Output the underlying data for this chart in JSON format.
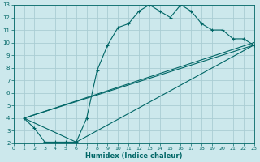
{
  "xlabel": "Humidex (Indice chaleur)",
  "xlim": [
    0,
    23
  ],
  "ylim": [
    2,
    13
  ],
  "xticks": [
    0,
    1,
    2,
    3,
    4,
    5,
    6,
    7,
    8,
    9,
    10,
    11,
    12,
    13,
    14,
    15,
    16,
    17,
    18,
    19,
    20,
    21,
    22,
    23
  ],
  "yticks": [
    2,
    3,
    4,
    5,
    6,
    7,
    8,
    9,
    10,
    11,
    12,
    13
  ],
  "bg_color": "#cce8ec",
  "line_color": "#006666",
  "grid_color": "#aacdd4",
  "line1_x": [
    1,
    2,
    3,
    4,
    5,
    6,
    7,
    8,
    9,
    10,
    11,
    12,
    13,
    14,
    15,
    16,
    17,
    18,
    19,
    20,
    21,
    22,
    23
  ],
  "line1_y": [
    4.0,
    3.2,
    2.1,
    2.1,
    2.1,
    2.1,
    4.0,
    7.8,
    9.8,
    11.2,
    11.5,
    12.5,
    13.0,
    12.5,
    12.0,
    13.0,
    12.5,
    11.5,
    11.0,
    11.0,
    10.3,
    10.3,
    9.8
  ],
  "line2_x": [
    1,
    23
  ],
  "line2_y": [
    4.0,
    10.0
  ],
  "line3_x": [
    1,
    23
  ],
  "line3_y": [
    4.0,
    9.8
  ],
  "line4_x": [
    1,
    6,
    23
  ],
  "line4_y": [
    4.0,
    2.1,
    9.8
  ]
}
